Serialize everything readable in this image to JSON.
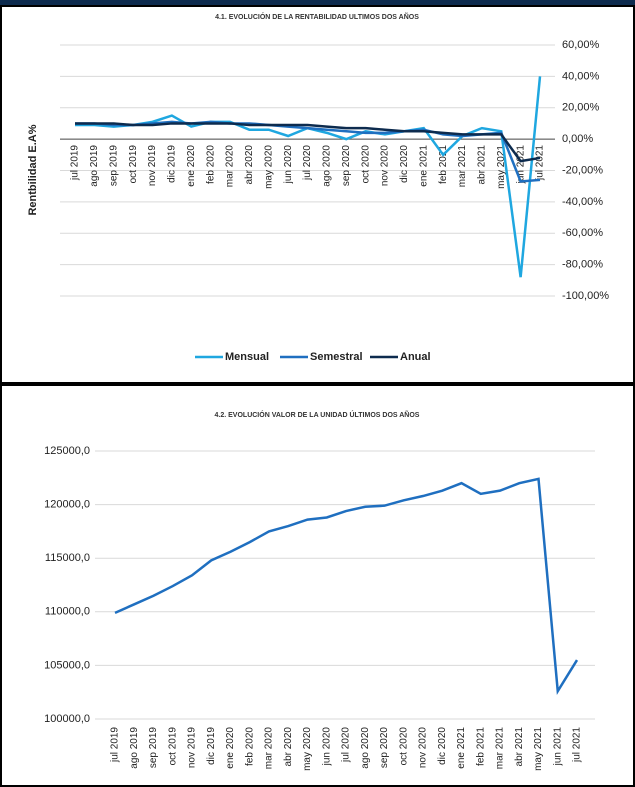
{
  "chart_data": [
    {
      "type": "line",
      "title": "4.1. EVOLUCIÓN DE LA RENTABILIDAD ULTIMOS DOS AÑOS",
      "y_label": "Rentbilidad  E.A%",
      "categories": [
        "jul 2019",
        "ago 2019",
        "sep 2019",
        "oct 2019",
        "nov 2019",
        "dic 2019",
        "ene 2020",
        "feb 2020",
        "mar 2020",
        "abr 2020",
        "may 2020",
        "jun 2020",
        "jul 2020",
        "ago 2020",
        "sep 2020",
        "oct 2020",
        "nov 2020",
        "dic 2020",
        "ene 2021",
        "feb 2021",
        "mar 2021",
        "abr 2021",
        "may 2021",
        "jun 2021",
        "jul 2021"
      ],
      "series": [
        {
          "name": "Mensual",
          "color": "#1fa7e0",
          "values": [
            9,
            9,
            8,
            9,
            11,
            15,
            8,
            11,
            11,
            6,
            6,
            2,
            7,
            4,
            0,
            5,
            3,
            5,
            7,
            -10,
            2,
            7,
            5,
            -88,
            40
          ]
        },
        {
          "name": "Semestral",
          "color": "#1f6fc0",
          "values": [
            10,
            10,
            9,
            9,
            10,
            11,
            10,
            11,
            10,
            10,
            9,
            8,
            7,
            6,
            5,
            4,
            4,
            5,
            6,
            3,
            2,
            3,
            4,
            -27,
            -26
          ]
        },
        {
          "name": "Anual",
          "color": "#0d2b4e",
          "values": [
            10,
            10,
            10,
            9,
            9,
            10,
            10,
            10,
            10,
            9,
            9,
            9,
            9,
            8,
            7,
            7,
            6,
            5,
            5,
            4,
            3,
            3,
            3,
            -14,
            -12
          ]
        }
      ],
      "ylim": [
        -100,
        60
      ],
      "yticks": [
        {
          "value": 60,
          "label": "60,00%"
        },
        {
          "value": 40,
          "label": "40,00%"
        },
        {
          "value": 20,
          "label": "20,00%"
        },
        {
          "value": 0,
          "label": "0,00%"
        },
        {
          "value": -20,
          "label": "-20,00%"
        },
        {
          "value": -40,
          "label": "-40,00%"
        },
        {
          "value": -60,
          "label": "-60,00%"
        },
        {
          "value": -80,
          "label": "-80,00%"
        },
        {
          "value": -100,
          "label": "-100,00%"
        }
      ],
      "grid": true,
      "legend": "bottom"
    },
    {
      "type": "line",
      "title": "4.2. EVOLUCIÓN VALOR DE LA UNIDAD ÚLTIMOS DOS AÑOS",
      "categories": [
        "jul 2019",
        "ago 2019",
        "sep 2019",
        "oct 2019",
        "nov 2019",
        "dic 2019",
        "ene 2020",
        "feb 2020",
        "mar 2020",
        "abr 2020",
        "may 2020",
        "jun 2020",
        "jul 2020",
        "ago 2020",
        "sep 2020",
        "oct 2020",
        "nov 2020",
        "dic 2020",
        "ene 2021",
        "feb 2021",
        "mar 2021",
        "abr 2021",
        "may 2021",
        "jun 2021",
        "jul 2021"
      ],
      "color": "#1f6fc0",
      "values": [
        109900,
        110700,
        111500,
        112400,
        113400,
        114800,
        115600,
        116500,
        117500,
        118000,
        118600,
        118800,
        119400,
        119800,
        119900,
        120400,
        120800,
        121300,
        122000,
        121000,
        121300,
        122000,
        122400,
        102600,
        105500
      ],
      "ylim": [
        100000,
        125000
      ],
      "yticks": [
        {
          "value": 100000,
          "label": "100000,0"
        },
        {
          "value": 105000,
          "label": "105000,0"
        },
        {
          "value": 110000,
          "label": "110000,0"
        },
        {
          "value": 115000,
          "label": "115000,0"
        },
        {
          "value": 120000,
          "label": "120000,0"
        },
        {
          "value": 125000,
          "label": "125000,0"
        }
      ],
      "grid": true
    }
  ]
}
